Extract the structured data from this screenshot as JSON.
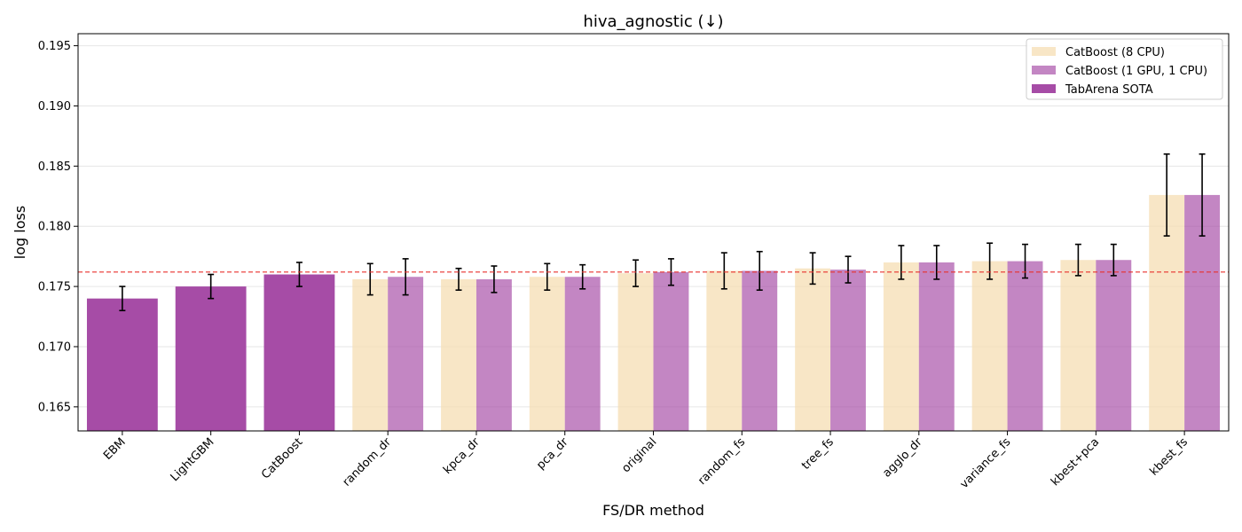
{
  "chart_data": {
    "type": "bar",
    "title": "hiva_agnostic (↓)",
    "xlabel": "FS/DR method",
    "ylabel": "log loss",
    "ylim": [
      0.163,
      0.196
    ],
    "yticks": [
      0.165,
      0.17,
      0.175,
      0.18,
      0.185,
      0.19,
      0.195
    ],
    "grid": "horizontal",
    "legend_position": "top-right",
    "reference_line": {
      "value": 0.1762,
      "color": "#e8302d",
      "style": "dashed"
    },
    "categories": [
      "EBM",
      "LightGBM",
      "CatBoost",
      "random_dr",
      "kpca_dr",
      "pca_dr",
      "original",
      "random_fs",
      "tree_fs",
      "agglo_dr",
      "variance_fs",
      "kbest+pca",
      "kbest_fs"
    ],
    "series": [
      {
        "name": "CatBoost (8 CPU)",
        "color": "#f5deb3",
        "opacity": 0.75,
        "values": [
          null,
          null,
          null,
          0.1756,
          0.1756,
          0.1758,
          0.1761,
          0.1763,
          0.1765,
          0.177,
          0.1771,
          0.1772,
          0.1826
        ],
        "errors": [
          null,
          null,
          null,
          0.0013,
          0.0009,
          0.0011,
          0.0011,
          0.0015,
          0.0013,
          0.0014,
          0.0015,
          0.0013,
          0.0034
        ]
      },
      {
        "name": "CatBoost (1 GPU, 1 CPU)",
        "color": "#a64ca6",
        "opacity": 0.68,
        "values": [
          null,
          null,
          null,
          0.1758,
          0.1756,
          0.1758,
          0.1762,
          0.1763,
          0.1764,
          0.177,
          0.1771,
          0.1772,
          0.1826
        ],
        "errors": [
          null,
          null,
          null,
          0.0015,
          0.0011,
          0.001,
          0.0011,
          0.0016,
          0.0011,
          0.0014,
          0.0014,
          0.0013,
          0.0034
        ]
      },
      {
        "name": "TabArena SOTA",
        "color": "#a64ca6",
        "opacity": 1.0,
        "values": [
          0.174,
          0.175,
          0.176,
          null,
          null,
          null,
          null,
          null,
          null,
          null,
          null,
          null,
          null
        ],
        "errors": [
          0.001,
          0.001,
          0.001,
          null,
          null,
          null,
          null,
          null,
          null,
          null,
          null,
          null,
          null
        ]
      }
    ]
  }
}
